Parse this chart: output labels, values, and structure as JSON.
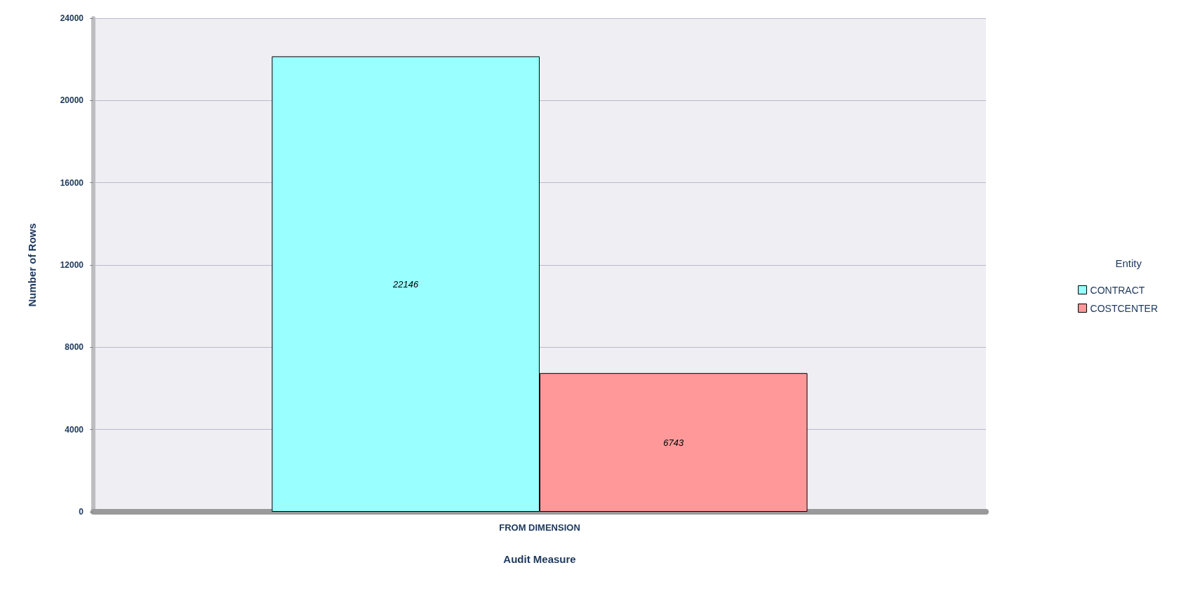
{
  "chart_data": {
    "type": "bar",
    "xlabel": "Audit Measure",
    "ylabel": "Number of Rows",
    "legend_title": "Entity",
    "categories": [
      "FROM DIMENSION"
    ],
    "series": [
      {
        "name": "CONTRACT",
        "color": "#99ffff",
        "values": [
          22146
        ]
      },
      {
        "name": "COSTCENTER",
        "color": "#ff9999",
        "values": [
          6743
        ]
      }
    ],
    "ylim": [
      0,
      24000
    ],
    "yticks": [
      0,
      4000,
      8000,
      12000,
      16000,
      20000,
      24000
    ],
    "grid": "y",
    "legend": "right",
    "data_labels": true
  }
}
